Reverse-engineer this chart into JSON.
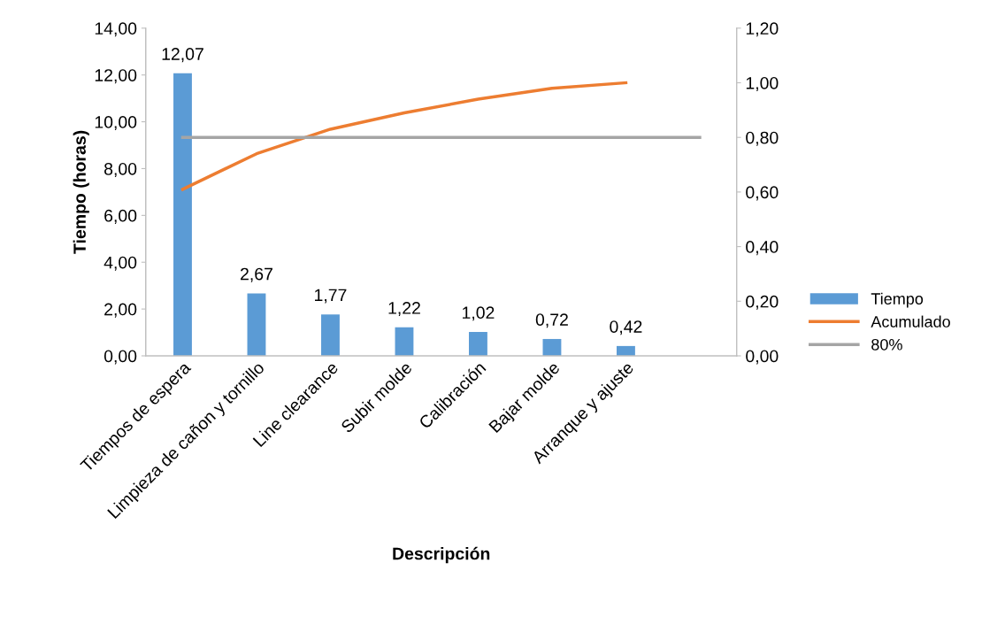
{
  "chart_data": {
    "type": "bar",
    "categories": [
      "Tiempos de espera",
      "Limpieza de cañon y tornillo",
      "Line clearance",
      "Subir molde",
      "Calibración",
      "Bajar molde",
      "Arranque y ajuste",
      null
    ],
    "series": [
      {
        "name": "Tiempo",
        "color": "#5b9bd5",
        "values": [
          12.07,
          2.67,
          1.77,
          1.22,
          1.02,
          0.72,
          0.42,
          null
        ],
        "value_labels": [
          "12,07",
          "2,67",
          "1,77",
          "1,22",
          "1,02",
          "0,72",
          "0,42",
          null
        ]
      },
      {
        "name": "Acumulado",
        "type": "line",
        "axis": "y2",
        "color": "#ed7d31",
        "values": [
          0.61,
          0.74,
          0.83,
          0.89,
          0.94,
          0.98,
          1.0,
          null
        ]
      },
      {
        "name": "80%",
        "type": "line",
        "axis": "y2",
        "color": "#a5a5a5",
        "values": [
          0.8,
          0.8,
          0.8,
          0.8,
          0.8,
          0.8,
          0.8,
          0.8
        ]
      }
    ],
    "xlabel": "Descripción",
    "ylabel": "Tiempo (horas)",
    "ylim": [
      0,
      14
    ],
    "yticks": [
      {
        "value": 0,
        "label": "0,00"
      },
      {
        "value": 2,
        "label": "2,00"
      },
      {
        "value": 4,
        "label": "4,00"
      },
      {
        "value": 6,
        "label": "6,00"
      },
      {
        "value": 8,
        "label": "8,00"
      },
      {
        "value": 10,
        "label": "10,00"
      },
      {
        "value": 12,
        "label": "12,00"
      },
      {
        "value": 14,
        "label": "14,00"
      }
    ],
    "y2lim": [
      0,
      1.2
    ],
    "y2ticks": [
      {
        "value": 0,
        "label": "0,00"
      },
      {
        "value": 0.2,
        "label": "0,20"
      },
      {
        "value": 0.4,
        "label": "0,40"
      },
      {
        "value": 0.6,
        "label": "0,60"
      },
      {
        "value": 0.8,
        "label": "0,80"
      },
      {
        "value": 1.0,
        "label": "1,00"
      },
      {
        "value": 1.2,
        "label": "1,20"
      }
    ],
    "grid": false,
    "legend": "right",
    "marker": "none",
    "line_style": "solid"
  }
}
